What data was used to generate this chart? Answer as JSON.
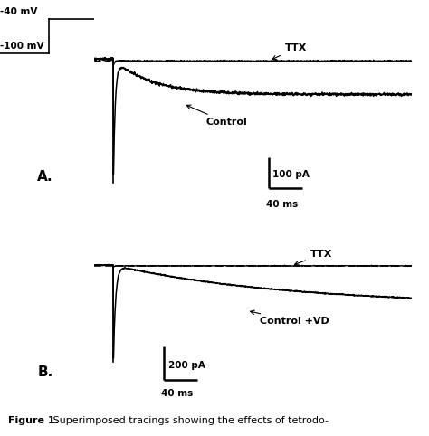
{
  "fig_width": 4.74,
  "fig_height": 4.82,
  "bg_color": "#ffffff",
  "panel_a": {
    "label": "A.",
    "voltage_step_label_top": "-40 mV",
    "voltage_step_label_bottom": "-100 mV",
    "scale_bar_y": "100 pA",
    "scale_bar_x": "40 ms",
    "ttx_label": "TTX",
    "control_label": "Control"
  },
  "panel_b": {
    "label": "B.",
    "scale_bar_y": "200 pA",
    "scale_bar_x": "40 ms",
    "ttx_label": "TTX",
    "control_label": "Control +VD"
  },
  "figure_caption_bold": "Figure 1.",
  "figure_caption_text": " Superimposed tracings showing the effects of tetrodo-"
}
